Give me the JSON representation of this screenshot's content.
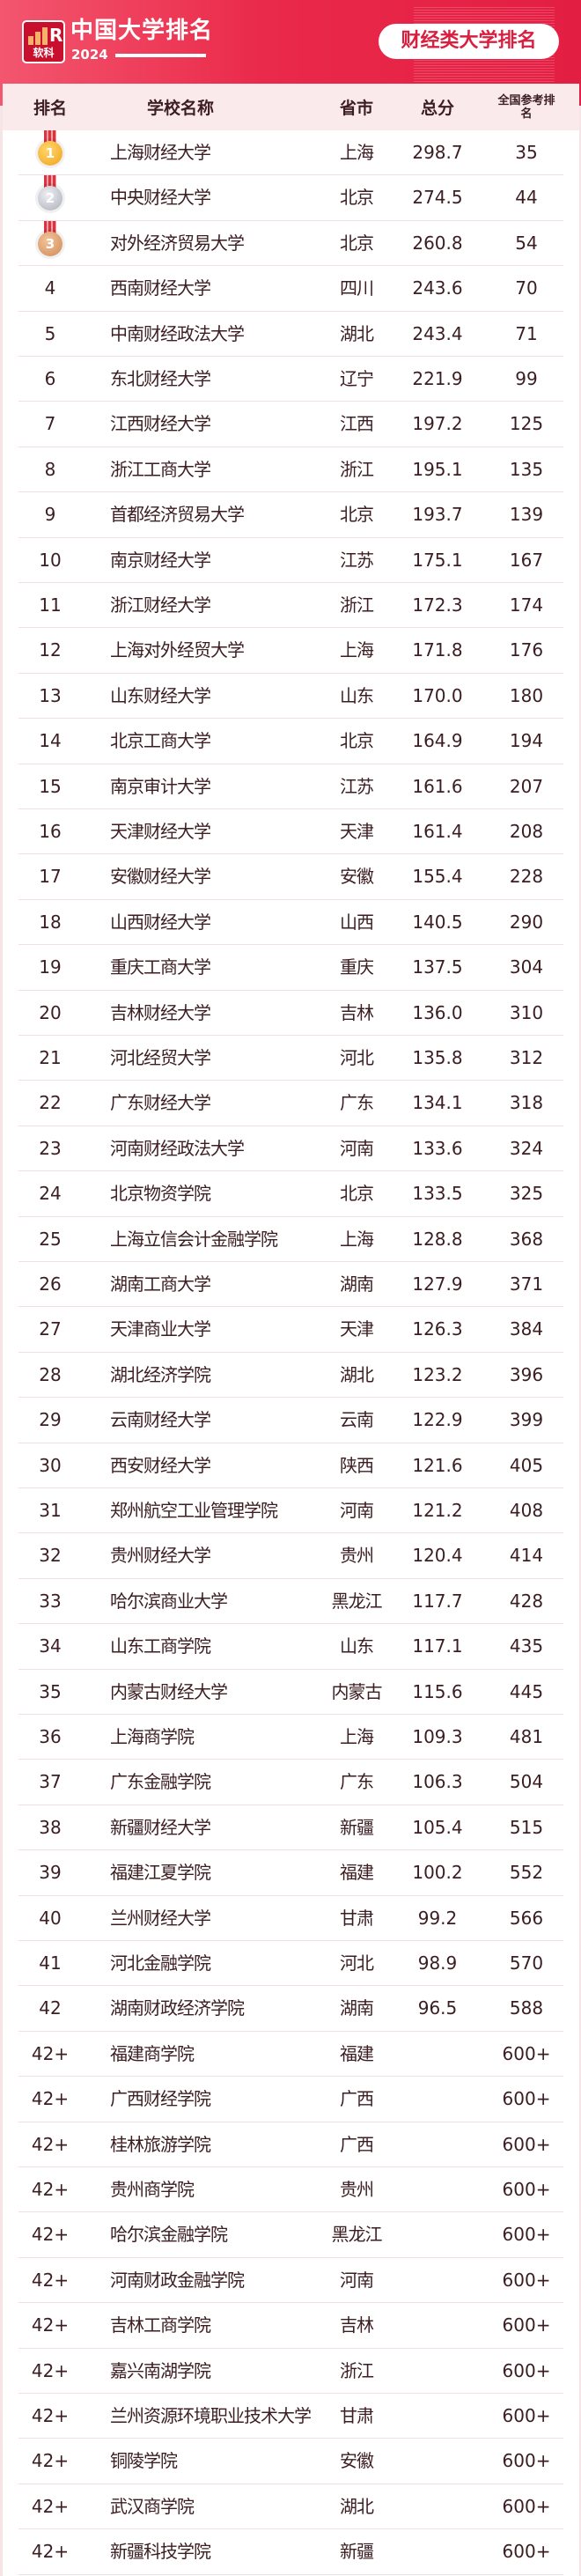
{
  "header": {
    "logo_text": "软科",
    "title": "中国大学排名",
    "year": "2024",
    "badge": "财经类大学排名"
  },
  "colors": {
    "brand": "#e31e43",
    "header_row": "#fbeaec",
    "text": "#3b1d22",
    "gold": "#f4a623",
    "silver": "#b8bcc4",
    "bronze": "#d89a6a"
  },
  "columns": {
    "rank": "排名",
    "name": "学校名称",
    "province": "省市",
    "score": "总分",
    "national": "全国参考排名"
  },
  "rows": [
    {
      "rank": "1",
      "medal": "gold",
      "name": "上海财经大学",
      "province": "上海",
      "score": "298.7",
      "national": "35"
    },
    {
      "rank": "2",
      "medal": "silver",
      "name": "中央财经大学",
      "province": "北京",
      "score": "274.5",
      "national": "44"
    },
    {
      "rank": "3",
      "medal": "bronze",
      "name": "对外经济贸易大学",
      "province": "北京",
      "score": "260.8",
      "national": "54"
    },
    {
      "rank": "4",
      "name": "西南财经大学",
      "province": "四川",
      "score": "243.6",
      "national": "70"
    },
    {
      "rank": "5",
      "name": "中南财经政法大学",
      "province": "湖北",
      "score": "243.4",
      "national": "71"
    },
    {
      "rank": "6",
      "name": "东北财经大学",
      "province": "辽宁",
      "score": "221.9",
      "national": "99"
    },
    {
      "rank": "7",
      "name": "江西财经大学",
      "province": "江西",
      "score": "197.2",
      "national": "125"
    },
    {
      "rank": "8",
      "name": "浙江工商大学",
      "province": "浙江",
      "score": "195.1",
      "national": "135"
    },
    {
      "rank": "9",
      "name": "首都经济贸易大学",
      "province": "北京",
      "score": "193.7",
      "national": "139"
    },
    {
      "rank": "10",
      "name": "南京财经大学",
      "province": "江苏",
      "score": "175.1",
      "national": "167"
    },
    {
      "rank": "11",
      "name": "浙江财经大学",
      "province": "浙江",
      "score": "172.3",
      "national": "174"
    },
    {
      "rank": "12",
      "name": "上海对外经贸大学",
      "province": "上海",
      "score": "171.8",
      "national": "176"
    },
    {
      "rank": "13",
      "name": "山东财经大学",
      "province": "山东",
      "score": "170.0",
      "national": "180"
    },
    {
      "rank": "14",
      "name": "北京工商大学",
      "province": "北京",
      "score": "164.9",
      "national": "194"
    },
    {
      "rank": "15",
      "name": "南京审计大学",
      "province": "江苏",
      "score": "161.6",
      "national": "207"
    },
    {
      "rank": "16",
      "name": "天津财经大学",
      "province": "天津",
      "score": "161.4",
      "national": "208"
    },
    {
      "rank": "17",
      "name": "安徽财经大学",
      "province": "安徽",
      "score": "155.4",
      "national": "228"
    },
    {
      "rank": "18",
      "name": "山西财经大学",
      "province": "山西",
      "score": "140.5",
      "national": "290"
    },
    {
      "rank": "19",
      "name": "重庆工商大学",
      "province": "重庆",
      "score": "137.5",
      "national": "304"
    },
    {
      "rank": "20",
      "name": "吉林财经大学",
      "province": "吉林",
      "score": "136.0",
      "national": "310"
    },
    {
      "rank": "21",
      "name": "河北经贸大学",
      "province": "河北",
      "score": "135.8",
      "national": "312"
    },
    {
      "rank": "22",
      "name": "广东财经大学",
      "province": "广东",
      "score": "134.1",
      "national": "318"
    },
    {
      "rank": "23",
      "name": "河南财经政法大学",
      "province": "河南",
      "score": "133.6",
      "national": "324"
    },
    {
      "rank": "24",
      "name": "北京物资学院",
      "province": "北京",
      "score": "133.5",
      "national": "325"
    },
    {
      "rank": "25",
      "name": "上海立信会计金融学院",
      "province": "上海",
      "score": "128.8",
      "national": "368"
    },
    {
      "rank": "26",
      "name": "湖南工商大学",
      "province": "湖南",
      "score": "127.9",
      "national": "371"
    },
    {
      "rank": "27",
      "name": "天津商业大学",
      "province": "天津",
      "score": "126.3",
      "national": "384"
    },
    {
      "rank": "28",
      "name": "湖北经济学院",
      "province": "湖北",
      "score": "123.2",
      "national": "396"
    },
    {
      "rank": "29",
      "name": "云南财经大学",
      "province": "云南",
      "score": "122.9",
      "national": "399"
    },
    {
      "rank": "30",
      "name": "西安财经大学",
      "province": "陕西",
      "score": "121.6",
      "national": "405"
    },
    {
      "rank": "31",
      "name": "郑州航空工业管理学院",
      "province": "河南",
      "score": "121.2",
      "national": "408"
    },
    {
      "rank": "32",
      "name": "贵州财经大学",
      "province": "贵州",
      "score": "120.4",
      "national": "414"
    },
    {
      "rank": "33",
      "name": "哈尔滨商业大学",
      "province": "黑龙江",
      "score": "117.7",
      "national": "428"
    },
    {
      "rank": "34",
      "name": "山东工商学院",
      "province": "山东",
      "score": "117.1",
      "national": "435"
    },
    {
      "rank": "35",
      "name": "内蒙古财经大学",
      "province": "内蒙古",
      "score": "115.6",
      "national": "445"
    },
    {
      "rank": "36",
      "name": "上海商学院",
      "province": "上海",
      "score": "109.3",
      "national": "481"
    },
    {
      "rank": "37",
      "name": "广东金融学院",
      "province": "广东",
      "score": "106.3",
      "national": "504"
    },
    {
      "rank": "38",
      "name": "新疆财经大学",
      "province": "新疆",
      "score": "105.4",
      "national": "515"
    },
    {
      "rank": "39",
      "name": "福建江夏学院",
      "province": "福建",
      "score": "100.2",
      "national": "552"
    },
    {
      "rank": "40",
      "name": "兰州财经大学",
      "province": "甘肃",
      "score": "99.2",
      "national": "566"
    },
    {
      "rank": "41",
      "name": "河北金融学院",
      "province": "河北",
      "score": "98.9",
      "national": "570"
    },
    {
      "rank": "42",
      "name": "湖南财政经济学院",
      "province": "湖南",
      "score": "96.5",
      "national": "588"
    },
    {
      "rank": "42+",
      "name": "福建商学院",
      "province": "福建",
      "score": "",
      "national": "600+"
    },
    {
      "rank": "42+",
      "name": "广西财经学院",
      "province": "广西",
      "score": "",
      "national": "600+"
    },
    {
      "rank": "42+",
      "name": "桂林旅游学院",
      "province": "广西",
      "score": "",
      "national": "600+"
    },
    {
      "rank": "42+",
      "name": "贵州商学院",
      "province": "贵州",
      "score": "",
      "national": "600+"
    },
    {
      "rank": "42+",
      "name": "哈尔滨金融学院",
      "province": "黑龙江",
      "score": "",
      "national": "600+"
    },
    {
      "rank": "42+",
      "name": "河南财政金融学院",
      "province": "河南",
      "score": "",
      "national": "600+"
    },
    {
      "rank": "42+",
      "name": "吉林工商学院",
      "province": "吉林",
      "score": "",
      "national": "600+"
    },
    {
      "rank": "42+",
      "name": "嘉兴南湖学院",
      "province": "浙江",
      "score": "",
      "national": "600+"
    },
    {
      "rank": "42+",
      "name": "兰州资源环境职业技术大学",
      "province": "甘肃",
      "score": "",
      "national": "600+"
    },
    {
      "rank": "42+",
      "name": "铜陵学院",
      "province": "安徽",
      "score": "",
      "national": "600+"
    },
    {
      "rank": "42+",
      "name": "武汉商学院",
      "province": "湖北",
      "score": "",
      "national": "600+"
    },
    {
      "rank": "42+",
      "name": "新疆科技学院",
      "province": "新疆",
      "score": "",
      "national": "600+"
    }
  ]
}
